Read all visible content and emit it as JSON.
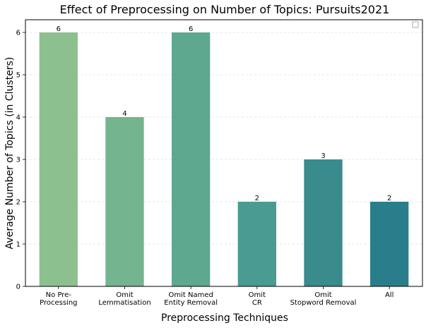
{
  "chart_data": {
    "type": "bar",
    "title": "Effect of Preprocessing on Number of Topics: Pursuits2021",
    "xlabel": "Preprocessing Techniques",
    "ylabel": "Average Number of Topics (in Clusters)",
    "categories": [
      [
        "No Pre-",
        "Processing"
      ],
      [
        "Omit",
        "Lemmatisation"
      ],
      [
        "Omit Named",
        "Entity Removal"
      ],
      [
        "Omit",
        "CR"
      ],
      [
        "Omit",
        "Stopword Removal"
      ],
      [
        "All"
      ]
    ],
    "values": [
      6,
      4,
      6,
      2,
      3,
      2
    ],
    "bar_colors": [
      "#8cc08f",
      "#74b48e",
      "#5ea890",
      "#4a9b91",
      "#398b8c",
      "#2a7e8b"
    ],
    "ylim": [
      0,
      6.3
    ],
    "yticks": [
      0,
      1,
      2,
      3,
      4,
      5,
      6
    ],
    "grid": "y-dashed",
    "legend": "top-right (empty)"
  }
}
